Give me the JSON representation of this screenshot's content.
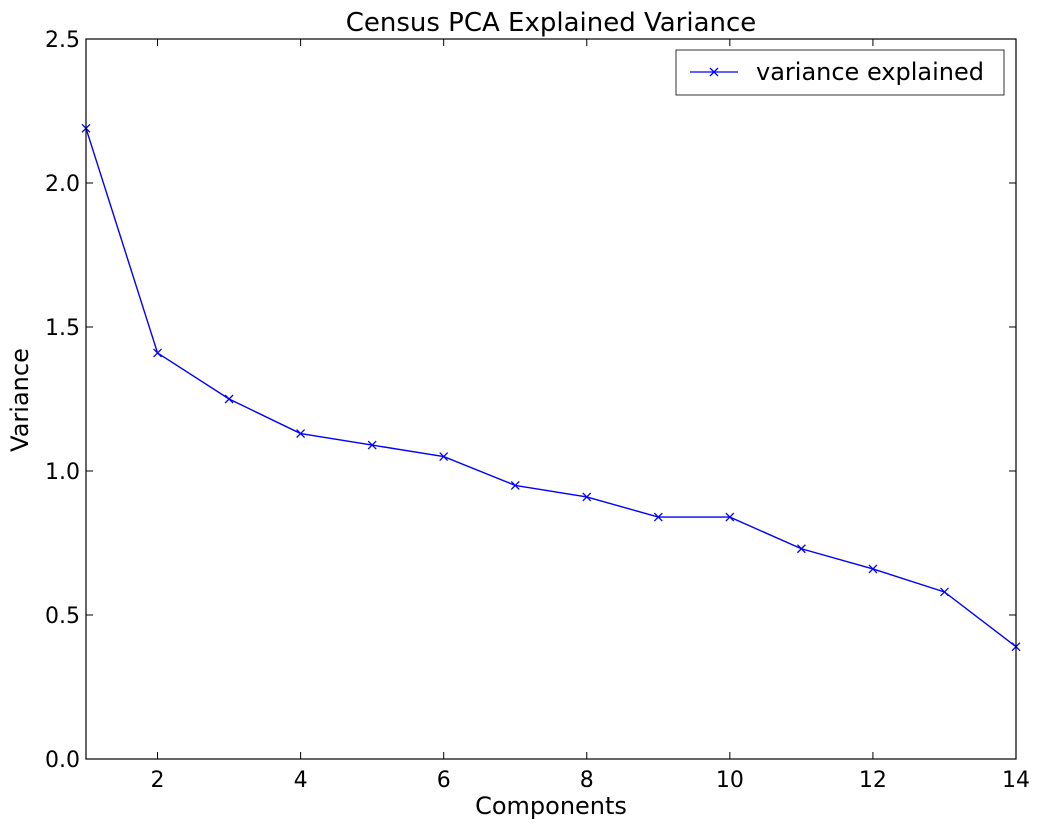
{
  "chart_data": {
    "type": "line",
    "title": "Census PCA Explained Variance",
    "xlabel": "Components",
    "ylabel": "Variance",
    "xlim": [
      1,
      14
    ],
    "ylim": [
      0,
      2.5
    ],
    "xticks": [
      2,
      4,
      6,
      8,
      10,
      12,
      14
    ],
    "xtick_labels": [
      "2",
      "4",
      "6",
      "8",
      "10",
      "12",
      "14"
    ],
    "yticks": [
      0.0,
      0.5,
      1.0,
      1.5,
      2.0,
      2.5
    ],
    "ytick_labels": [
      "0.0",
      "0.5",
      "1.0",
      "1.5",
      "2.0",
      "2.5"
    ],
    "grid": false,
    "legend_position": "top-right",
    "series": [
      {
        "name": "variance explained",
        "color": "#0000ff",
        "marker": "x",
        "x": [
          1,
          2,
          3,
          4,
          5,
          6,
          7,
          8,
          9,
          10,
          11,
          12,
          13,
          14
        ],
        "y": [
          2.19,
          1.41,
          1.25,
          1.13,
          1.09,
          1.05,
          0.95,
          0.91,
          0.84,
          0.84,
          0.73,
          0.66,
          0.58,
          0.39
        ]
      }
    ]
  }
}
